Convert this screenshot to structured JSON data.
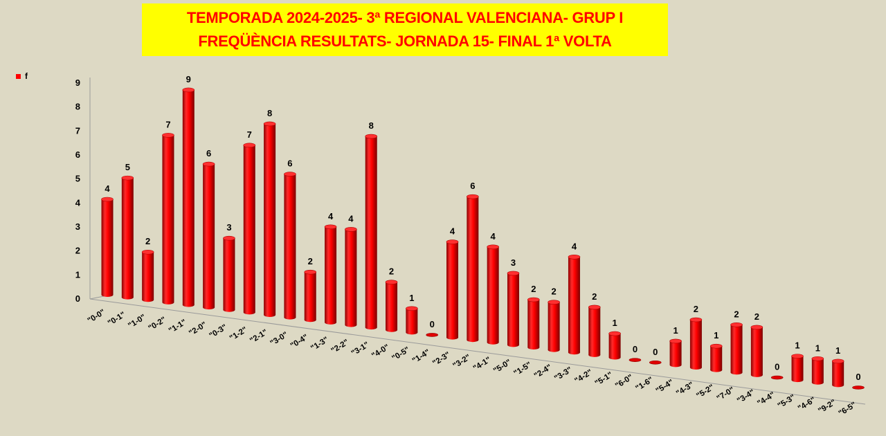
{
  "title": {
    "line1": "TEMPORADA 2024-2025-  3ª REGIONAL VALENCIANA- GRUP I",
    "line2": "FREQÜÈNCIA RESULTATS- JORNADA 15- FINAL 1ª VOLTA"
  },
  "colors": {
    "bar": "#ff0000",
    "title_bg": "#ffff00",
    "title_text": "#ff0000",
    "background": "#ddd9c4"
  },
  "chart_data": {
    "type": "bar",
    "style": "3d-cylinder",
    "title": "TEMPORADA 2024-2025-  3ª REGIONAL VALENCIANA- GRUP I / FREQÜÈNCIA RESULTATS- JORNADA 15- FINAL 1ª VOLTA",
    "categories": [
      "\"0-0\"",
      "\"0-1\"",
      "\"1-0\"",
      "\"0-2\"",
      "\"1-1\"",
      "\"2-0\"",
      "\"0-3\"",
      "\"1-2\"",
      "\"2-1\"",
      "\"3-0\"",
      "\"0-4\"",
      "\"1-3\"",
      "\"2-2\"",
      "\"3-1\"",
      "\"4-0\"",
      "\"0-5\"",
      "\"1-4\"",
      "\"2-3\"",
      "\"3-2\"",
      "\"4-1\"",
      "\"5-0\"",
      "\"1-5\"",
      "\"2-4\"",
      "\"3-3\"",
      "\"4-2\"",
      "\"5-1\"",
      "\"6-0\"",
      "\"1-6\"",
      "\"5-4\"",
      "\"4-3\"",
      "\"5-2\"",
      "\"7-0\"",
      "\"3-4\"",
      "\"4-4\"",
      "\"5-3\"",
      "\"4-6\"",
      "\"9-2\"",
      "\"6-5\""
    ],
    "series": [
      {
        "name": "f",
        "values": [
          4,
          5,
          2,
          7,
          9,
          6,
          3,
          7,
          8,
          6,
          2,
          4,
          4,
          8,
          2,
          1,
          0,
          4,
          6,
          4,
          3,
          2,
          2,
          4,
          2,
          1,
          0,
          0,
          1,
          2,
          1,
          2,
          2,
          0,
          1,
          1,
          1,
          0
        ]
      }
    ],
    "ylim": [
      0,
      9
    ],
    "yticks": [
      "0",
      "1",
      "2",
      "3",
      "4",
      "5",
      "6",
      "7",
      "8",
      "9"
    ],
    "legend": "top-left",
    "grid": false
  }
}
